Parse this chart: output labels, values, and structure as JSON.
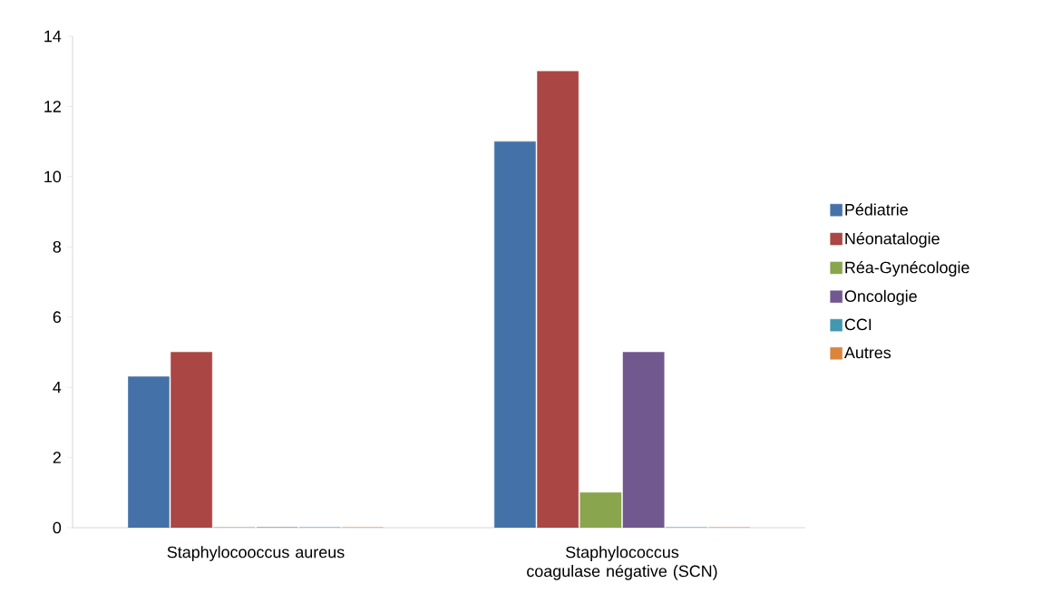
{
  "chart_data": {
    "type": "bar",
    "categories": [
      "Staphylocooccus aureus",
      "Staphylococcus coagulase négative (SCN)"
    ],
    "series": [
      {
        "name": "Pédiatrie",
        "color": "#4472a8",
        "values": [
          4.3,
          11
        ]
      },
      {
        "name": "Néonatalogie",
        "color": "#aa4644",
        "values": [
          5,
          13
        ]
      },
      {
        "name": "Réa-Gynécologie",
        "color": "#89a54e",
        "values": [
          0,
          1
        ]
      },
      {
        "name": "Oncologie",
        "color": "#71588f",
        "values": [
          0,
          5
        ]
      },
      {
        "name": "CCI",
        "color": "#4198af",
        "values": [
          0,
          0
        ]
      },
      {
        "name": "Autres",
        "color": "#db843d",
        "values": [
          0,
          0
        ]
      }
    ],
    "ylim": [
      0,
      14
    ],
    "yticks": [
      0,
      2,
      4,
      6,
      8,
      10,
      12,
      14
    ],
    "grid": false,
    "legend": "right"
  }
}
